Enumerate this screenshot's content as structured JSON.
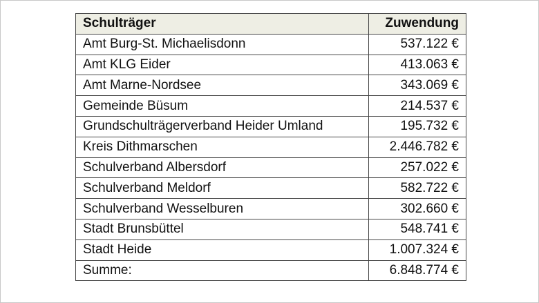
{
  "table": {
    "headers": {
      "school_authority": "Schulträger",
      "allocation": "Zuwendung"
    },
    "rows": [
      {
        "name": "Amt Burg-St. Michaelisdonn",
        "amount": "537.122 €"
      },
      {
        "name": "Amt KLG Eider",
        "amount": "413.063 €"
      },
      {
        "name": "Amt Marne-Nordsee",
        "amount": "343.069 €"
      },
      {
        "name": "Gemeinde Büsum",
        "amount": "214.537 €"
      },
      {
        "name": "Grundschulträgerverband Heider Umland",
        "amount": "195.732 €"
      },
      {
        "name": "Kreis Dithmarschen",
        "amount": "2.446.782 €"
      },
      {
        "name": "Schulverband Albersdorf",
        "amount": "257.022 €"
      },
      {
        "name": "Schulverband Meldorf",
        "amount": "582.722 €"
      },
      {
        "name": "Schulverband Wesselburen",
        "amount": "302.660 €"
      },
      {
        "name": "Stadt Brunsbüttel",
        "amount": "548.741 €"
      },
      {
        "name": "Stadt Heide",
        "amount": "1.007.324 €"
      }
    ],
    "total": {
      "label": "Summe:",
      "amount": "6.848.774 €"
    }
  },
  "colors": {
    "header_background": "#eeeee4",
    "border": "#444444",
    "text": "#111111"
  }
}
